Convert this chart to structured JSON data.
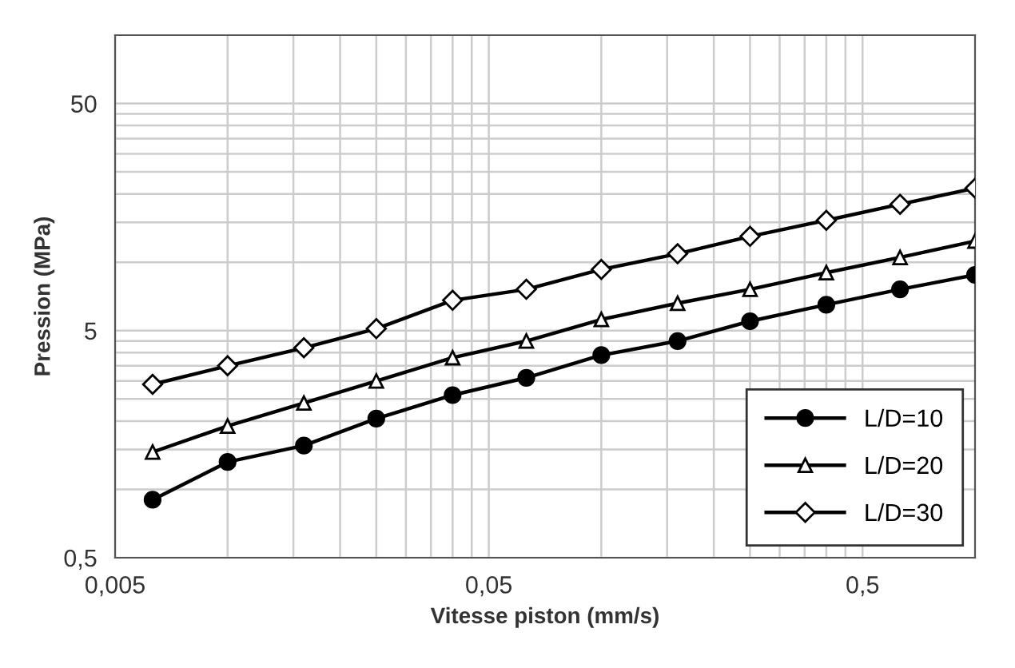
{
  "chart_data": {
    "type": "line",
    "xlabel": "Vitesse piston (mm/s)",
    "ylabel": "Pression (MPa)",
    "x": [
      0.0063,
      0.01,
      0.016,
      0.025,
      0.04,
      0.063,
      0.1,
      0.16,
      0.25,
      0.4,
      0.63,
      1.0
    ],
    "series": [
      {
        "name": "L/D=10",
        "color": "#000000",
        "marker": "circle",
        "values": [
          0.9,
          1.32,
          1.56,
          2.05,
          2.6,
          3.1,
          3.9,
          4.5,
          5.5,
          6.5,
          7.6,
          8.8
        ]
      },
      {
        "name": "L/D=20",
        "color": "#000000",
        "marker": "triangle",
        "values": [
          1.46,
          1.9,
          2.4,
          3.0,
          3.8,
          4.5,
          5.6,
          6.6,
          7.6,
          9.0,
          10.5,
          12.4
        ]
      },
      {
        "name": "L/D=30",
        "color": "#000000",
        "marker": "diamond",
        "values": [
          2.9,
          3.5,
          4.2,
          5.1,
          6.8,
          7.6,
          9.3,
          10.9,
          13.0,
          15.3,
          18.0,
          21.2
        ]
      }
    ],
    "log": "xy",
    "xlim": [
      0.005,
      1.0
    ],
    "ylim": [
      0.5,
      100
    ],
    "xticks": [
      {
        "value": 0.005,
        "label": "0,005"
      },
      {
        "value": 0.01,
        "label": null
      },
      {
        "value": 0.015,
        "label": null
      },
      {
        "value": 0.02,
        "label": null
      },
      {
        "value": 0.025,
        "label": null
      },
      {
        "value": 0.03,
        "label": null
      },
      {
        "value": 0.035,
        "label": null
      },
      {
        "value": 0.04,
        "label": null
      },
      {
        "value": 0.045,
        "label": null
      },
      {
        "value": 0.05,
        "label": "0,05"
      },
      {
        "value": 0.1,
        "label": null
      },
      {
        "value": 0.15,
        "label": null
      },
      {
        "value": 0.2,
        "label": null
      },
      {
        "value": 0.25,
        "label": null
      },
      {
        "value": 0.3,
        "label": null
      },
      {
        "value": 0.35,
        "label": null
      },
      {
        "value": 0.4,
        "label": null
      },
      {
        "value": 0.45,
        "label": null
      },
      {
        "value": 0.5,
        "label": "0,5"
      }
    ],
    "yticks": [
      {
        "value": 0.5,
        "label": "0,5"
      },
      {
        "value": 1,
        "label": null
      },
      {
        "value": 1.5,
        "label": null
      },
      {
        "value": 2,
        "label": null
      },
      {
        "value": 2.5,
        "label": null
      },
      {
        "value": 3,
        "label": null
      },
      {
        "value": 3.5,
        "label": null
      },
      {
        "value": 4,
        "label": null
      },
      {
        "value": 4.5,
        "label": null
      },
      5,
      {
        "value": 10,
        "label": null
      },
      {
        "value": 15,
        "label": null
      },
      {
        "value": 20,
        "label": null
      },
      {
        "value": 25,
        "label": null
      },
      {
        "value": 30,
        "label": null
      },
      {
        "value": 35,
        "label": null
      },
      {
        "value": 40,
        "label": null
      },
      {
        "value": 45,
        "label": null
      },
      50
    ],
    "grid": true,
    "legend": "bottom right",
    "line_style": "solid"
  }
}
